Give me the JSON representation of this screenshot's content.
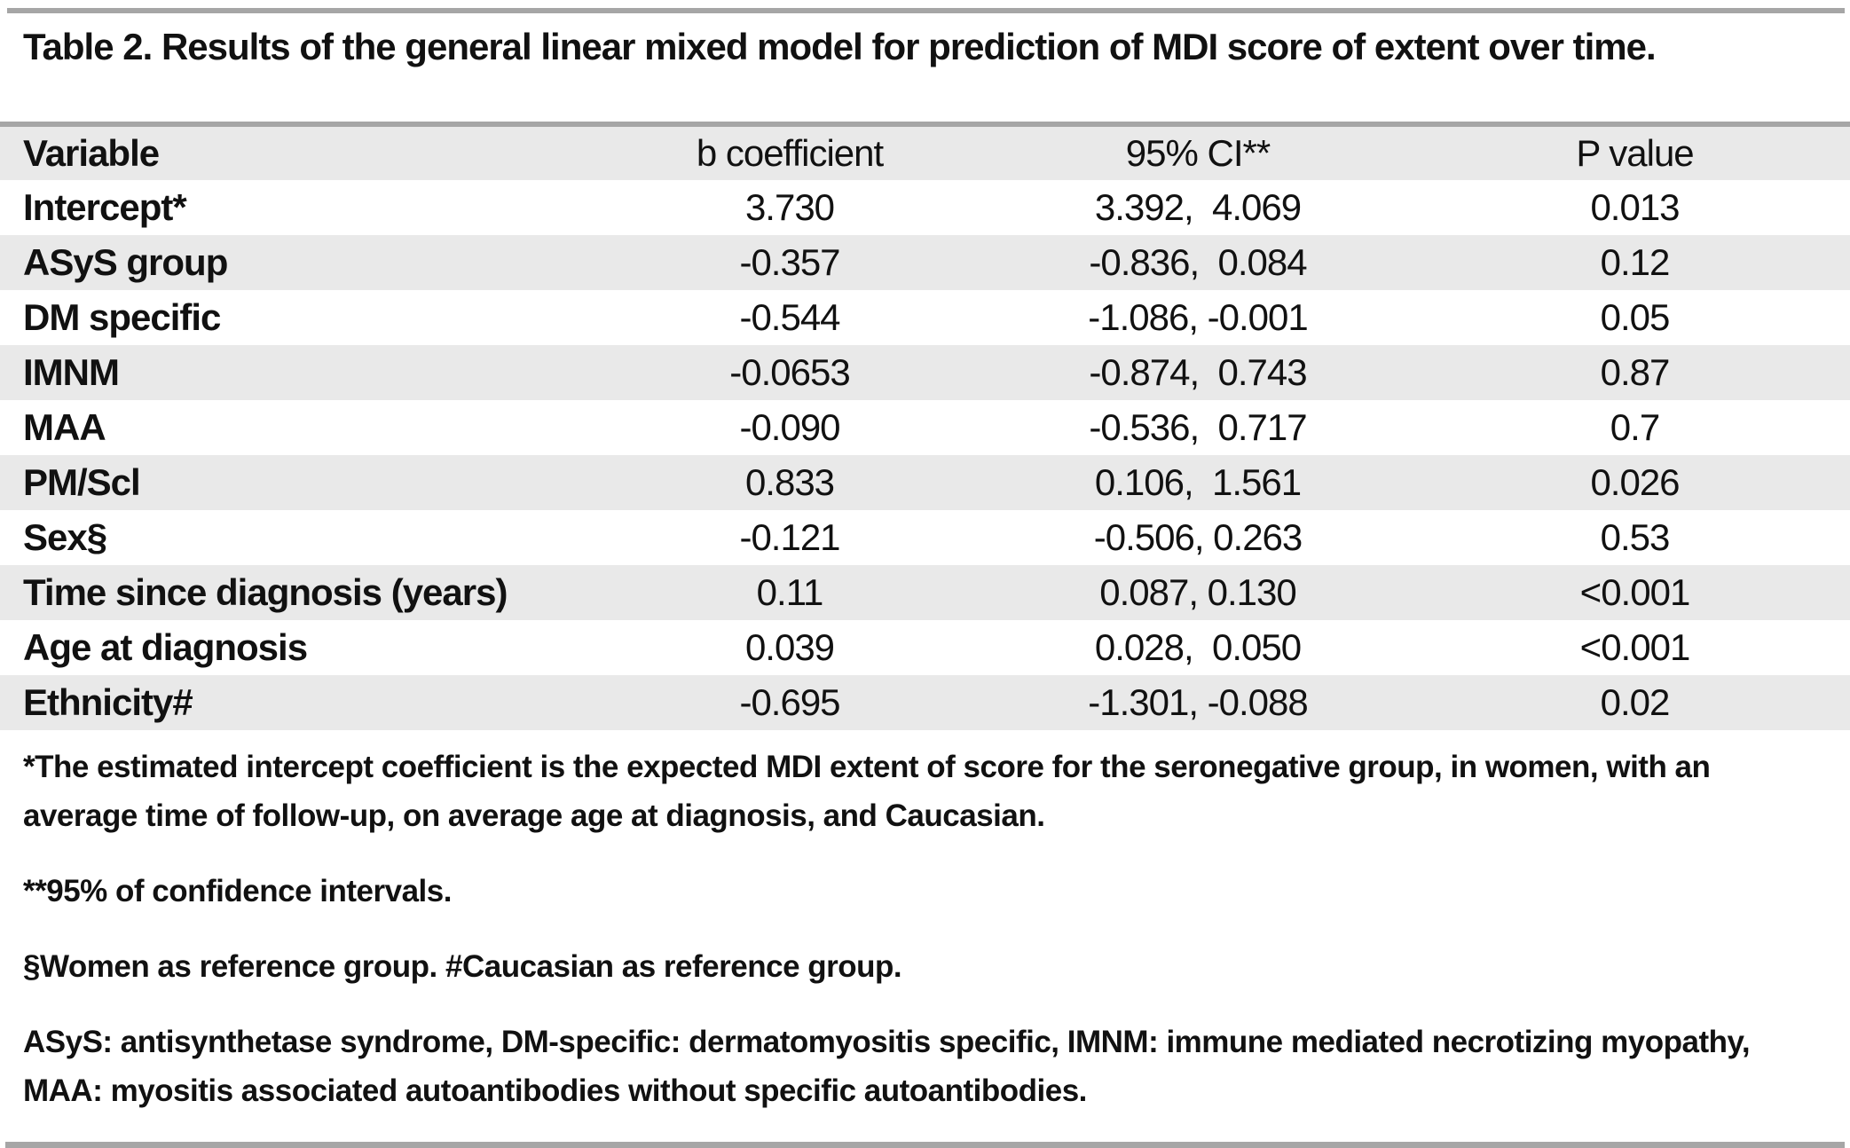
{
  "title": "Table 2. Results of the general linear mixed model for prediction of MDI score of extent over time.",
  "table": {
    "headers": [
      "Variable",
      "b coefficient",
      "95% CI**",
      "P value"
    ],
    "rows": [
      {
        "variable": "Intercept*",
        "b": "3.730",
        "ci": "3.392,  4.069",
        "p": "0.013"
      },
      {
        "variable": "ASyS group",
        "b": "-0.357",
        "ci": "-0.836,  0.084",
        "p": "0.12"
      },
      {
        "variable": "DM specific",
        "b": "-0.544",
        "ci": "-1.086, -0.001",
        "p": "0.05"
      },
      {
        "variable": "IMNM",
        "b": "-0.0653",
        "ci": "-0.874,  0.743",
        "p": "0.87"
      },
      {
        "variable": "MAA",
        "b": "-0.090",
        "ci": "-0.536,  0.717",
        "p": "0.7"
      },
      {
        "variable": "PM/Scl",
        "b": "0.833",
        "ci": "0.106,  1.561",
        "p": "0.026"
      },
      {
        "variable": "Sex§",
        "b": "-0.121",
        "ci": "-0.506, 0.263",
        "p": "0.53"
      },
      {
        "variable": "Time since diagnosis (years)",
        "b": "0.11",
        "ci": "0.087, 0.130",
        "p": "<0.001"
      },
      {
        "variable": "Age at diagnosis",
        "b": "0.039",
        "ci": "0.028,  0.050",
        "p": "<0.001"
      },
      {
        "variable": "Ethnicity#",
        "b": "-0.695",
        "ci": "-1.301, -0.088",
        "p": "0.02"
      }
    ]
  },
  "footnotes": [
    "*The estimated intercept coefficient is the expected MDI extent of score for the seronegative group, in women, with an average time of follow-up, on average age at diagnosis, and Caucasian.",
    "**95% of confidence intervals.",
    "§Women as reference group. #Caucasian as reference group.",
    "ASyS: antisynthetase syndrome, DM-specific: dermatomyositis specific, IMNM: immune mediated necrotizing myopathy, MAA: myositis associated autoantibodies without specific autoantibodies."
  ],
  "colors": {
    "row_stripe": "#e9e9e9",
    "rule": "#a6a6a6",
    "text": "#111111"
  }
}
